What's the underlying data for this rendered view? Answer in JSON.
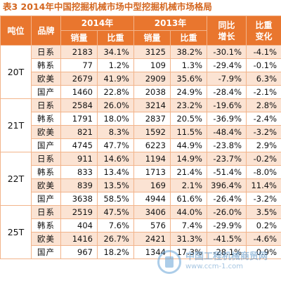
{
  "title": "表3 2014年中国挖掘机械市场中型挖掘机械市场格局",
  "header": {
    "ton": "吨位",
    "brand": "品牌",
    "year2014": "2014年",
    "year2013": "2013年",
    "yoy": "同比增长",
    "share_change": "比重变化",
    "sales": "销量",
    "share": "比重"
  },
  "groups": [
    {
      "ton": "20T",
      "rows": [
        {
          "brand": "日系",
          "s14": "2183",
          "p14": "34.1%",
          "s13": "3125",
          "p13": "38.2%",
          "yoy": "-30.1%",
          "chg": "-4.1%"
        },
        {
          "brand": "韩系",
          "s14": "77",
          "p14": "1.2%",
          "s13": "109",
          "p13": "1.3%",
          "yoy": "-29.4%",
          "chg": "-0.1%"
        },
        {
          "brand": "欧美",
          "s14": "2679",
          "p14": "41.9%",
          "s13": "2909",
          "p13": "35.6%",
          "yoy": "-7.9%",
          "chg": "6.3%"
        },
        {
          "brand": "国产",
          "s14": "1460",
          "p14": "22.8%",
          "s13": "2038",
          "p13": "24.9%",
          "yoy": "-28.4%",
          "chg": "-2.1%"
        }
      ]
    },
    {
      "ton": "21T",
      "rows": [
        {
          "brand": "日系",
          "s14": "2584",
          "p14": "26.0%",
          "s13": "3214",
          "p13": "23.2%",
          "yoy": "-19.6%",
          "chg": "2.8%"
        },
        {
          "brand": "韩系",
          "s14": "1791",
          "p14": "18.0%",
          "s13": "2837",
          "p13": "20.5%",
          "yoy": "-36.9%",
          "chg": "-2.4%"
        },
        {
          "brand": "欧美",
          "s14": "821",
          "p14": "8.3%",
          "s13": "1592",
          "p13": "11.5%",
          "yoy": "-48.4%",
          "chg": "-3.2%"
        },
        {
          "brand": "国产",
          "s14": "4745",
          "p14": "47.7%",
          "s13": "6223",
          "p13": "44.9%",
          "yoy": "-23.8%",
          "chg": "2.9%"
        }
      ]
    },
    {
      "ton": "22T",
      "rows": [
        {
          "brand": "日系",
          "s14": "911",
          "p14": "14.6%",
          "s13": "1194",
          "p13": "14.9%",
          "yoy": "-23.7%",
          "chg": "-0.2%"
        },
        {
          "brand": "韩系",
          "s14": "833",
          "p14": "13.4%",
          "s13": "1713",
          "p13": "21.4%",
          "yoy": "-51.4%",
          "chg": "-8.0%"
        },
        {
          "brand": "欧美",
          "s14": "839",
          "p14": "13.5%",
          "s13": "169",
          "p13": "2.1%",
          "yoy": "396.4%",
          "chg": "11.4%"
        },
        {
          "brand": "国产",
          "s14": "3638",
          "p14": "58.5%",
          "s13": "4944",
          "p13": "61.6%",
          "yoy": "-26.4%",
          "chg": "-3.2%"
        }
      ]
    },
    {
      "ton": "25T",
      "rows": [
        {
          "brand": "日系",
          "s14": "2519",
          "p14": "47.5%",
          "s13": "3406",
          "p13": "44.0%",
          "yoy": "-26.0%",
          "chg": "3.5%"
        },
        {
          "brand": "韩系",
          "s14": "404",
          "p14": "7.6%",
          "s13": "576",
          "p13": "7.4%",
          "yoy": "-29.9%",
          "chg": "0.2%"
        },
        {
          "brand": "欧美",
          "s14": "1416",
          "p14": "26.7%",
          "s13": "2421",
          "p13": "31.3%",
          "yoy": "-41.5%",
          "chg": "-4.6%"
        },
        {
          "brand": "国产",
          "s14": "967",
          "p14": "18.2%",
          "s13": "1344",
          "p13": "17.3%",
          "yoy": "-28.1%",
          "chg": "0.9%"
        }
      ]
    }
  ],
  "watermark": {
    "line1": "中国工程机械商贸网",
    "line2": "www.ccm-1.com"
  }
}
